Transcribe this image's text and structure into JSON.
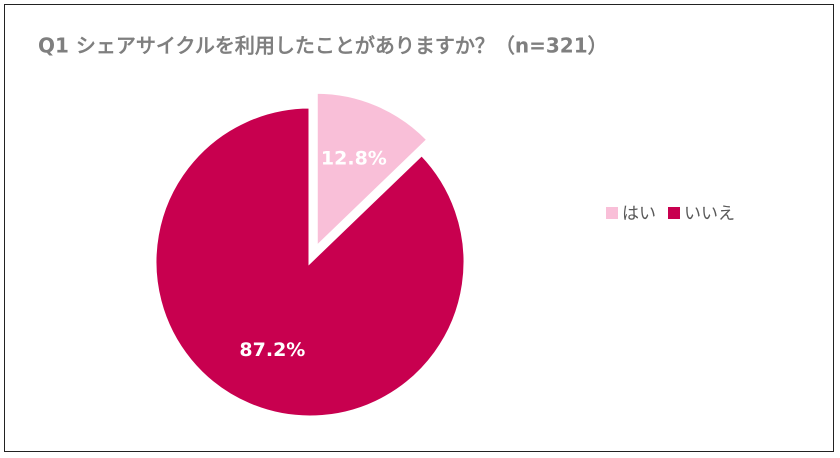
{
  "chart_data": {
    "type": "pie",
    "title": "Q1 シェアサイクルを利用したことがありますか？（n=321）",
    "categories": [
      "はい",
      "いいえ"
    ],
    "values": [
      12.8,
      87.2
    ],
    "value_labels": [
      "12.8%",
      "87.2%"
    ],
    "colors": [
      "#f9bfd8",
      "#c8004f"
    ],
    "explode": [
      true,
      false
    ],
    "legend": "right"
  }
}
